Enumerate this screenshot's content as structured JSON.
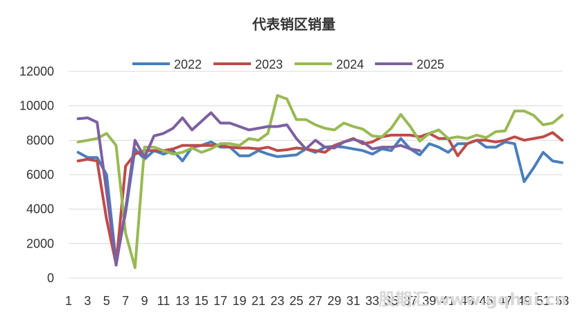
{
  "chart_data": {
    "type": "line",
    "title": "代表销区销量",
    "xlabel": "",
    "ylabel": "",
    "x": [
      1,
      2,
      3,
      4,
      5,
      6,
      7,
      8,
      9,
      10,
      11,
      12,
      13,
      14,
      15,
      16,
      17,
      18,
      19,
      20,
      21,
      22,
      23,
      24,
      25,
      26,
      27,
      28,
      29,
      30,
      31,
      32,
      33,
      34,
      35,
      36,
      37,
      38,
      39,
      40,
      41,
      42,
      43,
      44,
      45,
      46,
      47,
      48,
      49,
      50,
      51,
      52,
      53
    ],
    "xticks": [
      1,
      3,
      5,
      7,
      9,
      11,
      13,
      15,
      17,
      19,
      21,
      23,
      25,
      27,
      29,
      31,
      33,
      35,
      37,
      39,
      41,
      43,
      45,
      47,
      49,
      51,
      53
    ],
    "ylim": [
      0,
      12000
    ],
    "yticks": [
      0,
      2000,
      4000,
      6000,
      8000,
      10000,
      12000
    ],
    "grid": true,
    "legend_position": "top",
    "series": [
      {
        "name": "2022",
        "color": "#4a7ebb",
        "values": [
          null,
          7300,
          7000,
          7000,
          6000,
          900,
          3800,
          7500,
          6900,
          7400,
          7200,
          7400,
          6800,
          7600,
          7700,
          7900,
          7600,
          7600,
          7100,
          7100,
          7400,
          7200,
          7050,
          7100,
          7150,
          7500,
          7300,
          7600,
          7650,
          7600,
          7500,
          7400,
          7200,
          7500,
          7400,
          8100,
          7500,
          7150,
          7800,
          7600,
          7300,
          7800,
          7800,
          8000,
          7600,
          7600,
          7900,
          7800,
          5600,
          6400,
          7300,
          6800,
          6700
        ]
      },
      {
        "name": "2023",
        "color": "#be4b48",
        "values": [
          null,
          6800,
          6900,
          6800,
          3400,
          800,
          6500,
          7200,
          7400,
          7400,
          7400,
          7500,
          7700,
          7700,
          7700,
          7700,
          7700,
          7600,
          7550,
          7550,
          7500,
          7600,
          7400,
          7450,
          7550,
          7500,
          7400,
          7300,
          7700,
          7900,
          8100,
          7800,
          7900,
          8200,
          8300,
          8300,
          8300,
          8200,
          8400,
          8100,
          8100,
          7100,
          7800,
          8000,
          8000,
          7900,
          8000,
          8200,
          8000,
          8100,
          8200,
          8450,
          8000
        ]
      },
      {
        "name": "2024",
        "color": "#98b954",
        "values": [
          null,
          7900,
          8000,
          8100,
          8400,
          7700,
          2600,
          600,
          7600,
          7600,
          7400,
          7200,
          7300,
          7550,
          7300,
          7500,
          7800,
          7800,
          7700,
          8100,
          8000,
          8400,
          10600,
          10400,
          9200,
          9200,
          8900,
          8700,
          8600,
          9000,
          8800,
          8650,
          8250,
          8200,
          8700,
          9500,
          8800,
          7950,
          8400,
          8600,
          8100,
          8200,
          8100,
          8300,
          8150,
          8500,
          8550,
          9700,
          9700,
          9450,
          8900,
          9000,
          9450
        ]
      },
      {
        "name": "2025",
        "color": "#7d60a0",
        "values": [
          null,
          9250,
          9300,
          9050,
          5000,
          750,
          4000,
          8000,
          7000,
          8250,
          8400,
          8700,
          9300,
          8600,
          9100,
          9600,
          9000,
          9000,
          8800,
          8600,
          8700,
          8800,
          8800,
          8900,
          8100,
          7500,
          8000,
          7600,
          7550,
          7900,
          8050,
          7900,
          7500,
          7600,
          7600,
          7700,
          7500,
          7400,
          null,
          null,
          null,
          null,
          null,
          null,
          null,
          null,
          null,
          null,
          null,
          null,
          null,
          null,
          null
        ]
      }
    ]
  },
  "watermark": "股期汇 www.gqhui.cn"
}
